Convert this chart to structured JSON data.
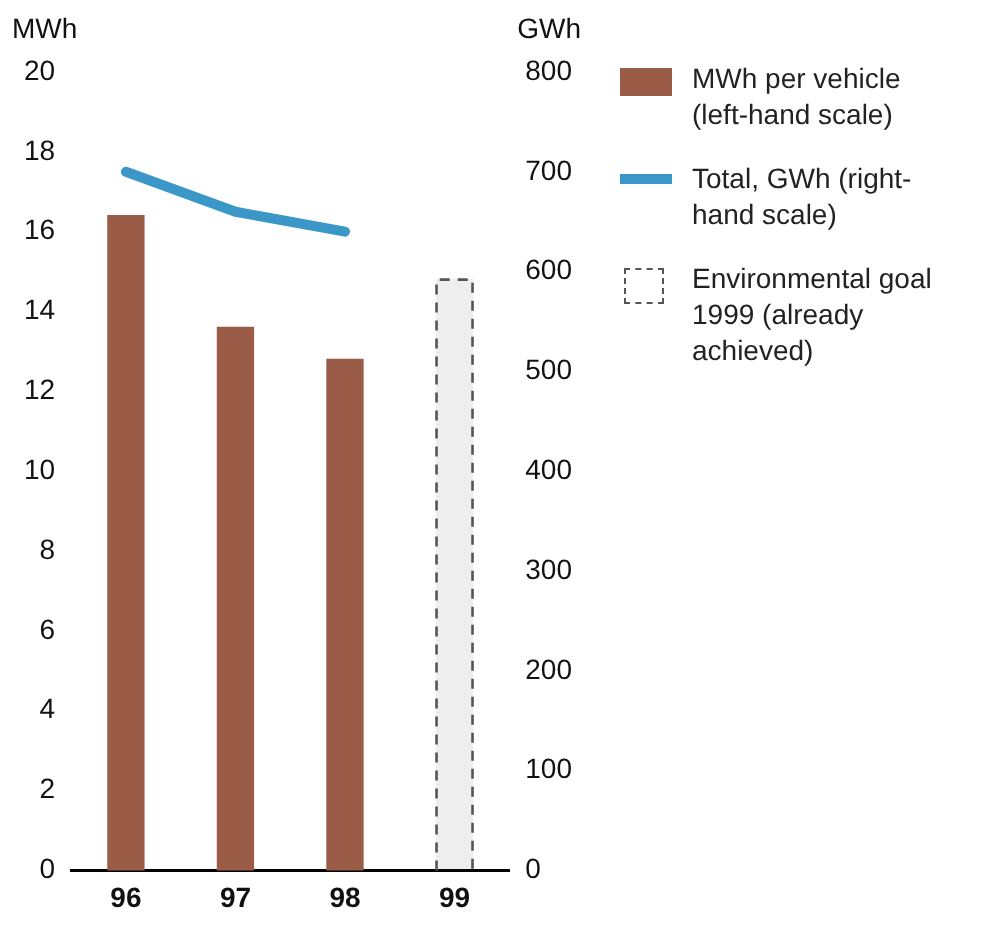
{
  "chart_data": {
    "type": "bar",
    "ylabel": "MWh",
    "y2label": "GWh",
    "categories": [
      "96",
      "97",
      "98",
      "99"
    ],
    "series": [
      {
        "name": "MWh per vehicle (left-hand scale)",
        "color": "#9a5b47",
        "values": [
          16.4,
          13.6,
          12.8,
          null
        ]
      },
      {
        "name": "Total, GWh (right-hand scale)",
        "type": "line",
        "axis": "y2",
        "color": "#3a97c8",
        "values": [
          700,
          660,
          640,
          null
        ]
      },
      {
        "name": "Environmental goal 1999 (already achieved)",
        "color": "#555555",
        "line_style": "dashed",
        "values": [
          null,
          null,
          null,
          14.8
        ]
      }
    ],
    "ylim": [
      0,
      20
    ],
    "yticks": [
      0,
      2,
      4,
      6,
      8,
      10,
      12,
      14,
      16,
      18,
      20
    ],
    "y2lim": [
      0,
      800
    ],
    "y2ticks": [
      0,
      100,
      200,
      300,
      400,
      500,
      600,
      700,
      800
    ],
    "grid": false,
    "legend": "right",
    "marker": "none"
  }
}
